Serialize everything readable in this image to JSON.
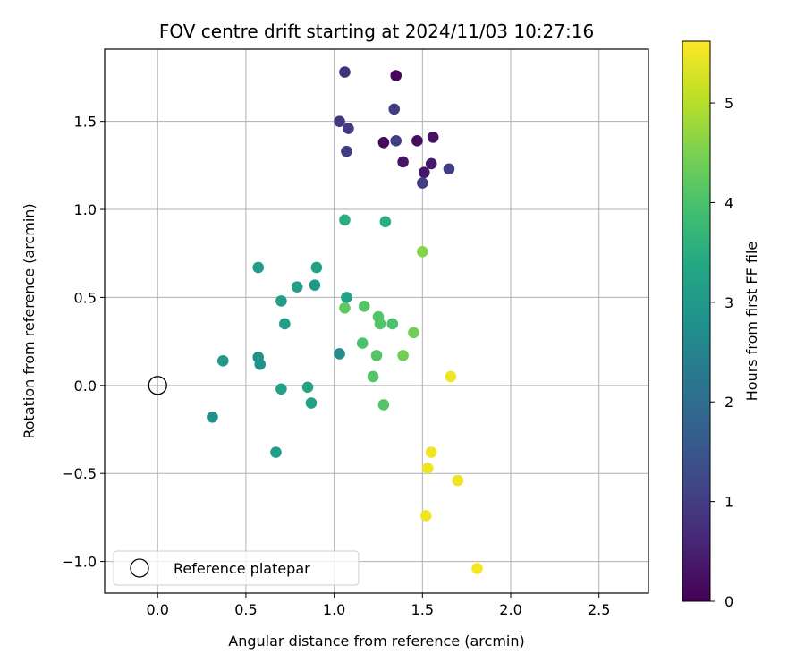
{
  "chart_data": {
    "type": "scatter",
    "title": "FOV centre drift starting at 2024/11/03 10:27:16",
    "xlabel": "Angular distance from reference (arcmin)",
    "ylabel": "Rotation from reference (arcmin)",
    "colorbar_label": "Hours from first FF file",
    "colormap": "viridis",
    "xlim": [
      -0.3,
      2.78
    ],
    "ylim": [
      -1.18,
      1.91
    ],
    "clim": [
      0,
      5.62
    ],
    "xticks": [
      0.0,
      0.5,
      1.0,
      1.5,
      2.0,
      2.5
    ],
    "xtick_labels": [
      "0.0",
      "0.5",
      "1.0",
      "1.5",
      "2.0",
      "2.5"
    ],
    "yticks": [
      -1.0,
      -0.5,
      0.0,
      0.5,
      1.0,
      1.5
    ],
    "ytick_labels": [
      "−1.0",
      "−0.5",
      "0.0",
      "0.5",
      "1.0",
      "1.5"
    ],
    "cticks": [
      0,
      1,
      2,
      3,
      4,
      5
    ],
    "ctick_labels": [
      "0",
      "1",
      "2",
      "3",
      "4",
      "5"
    ],
    "grid": true,
    "reference": {
      "x": 0.0,
      "y": 0.0,
      "label": "Reference platepar"
    },
    "legend_position": "lower-left",
    "points": [
      {
        "x": 1.35,
        "y": 1.76,
        "h": 0.1
      },
      {
        "x": 1.28,
        "y": 1.38,
        "h": 0.15
      },
      {
        "x": 1.47,
        "y": 1.39,
        "h": 0.2
      },
      {
        "x": 1.56,
        "y": 1.41,
        "h": 0.25
      },
      {
        "x": 1.39,
        "y": 1.27,
        "h": 0.3
      },
      {
        "x": 1.51,
        "y": 1.21,
        "h": 0.35
      },
      {
        "x": 1.55,
        "y": 1.26,
        "h": 0.4
      },
      {
        "x": 1.06,
        "y": 1.78,
        "h": 0.8
      },
      {
        "x": 1.03,
        "y": 1.5,
        "h": 0.9
      },
      {
        "x": 1.08,
        "y": 1.46,
        "h": 0.95
      },
      {
        "x": 1.34,
        "y": 1.57,
        "h": 1.0
      },
      {
        "x": 1.35,
        "y": 1.39,
        "h": 1.05
      },
      {
        "x": 1.07,
        "y": 1.33,
        "h": 1.0
      },
      {
        "x": 1.5,
        "y": 1.15,
        "h": 1.0
      },
      {
        "x": 1.65,
        "y": 1.23,
        "h": 1.0
      },
      {
        "x": 0.57,
        "y": 0.67,
        "h": 3.1
      },
      {
        "x": 0.9,
        "y": 0.67,
        "h": 3.2
      },
      {
        "x": 0.79,
        "y": 0.56,
        "h": 3.1
      },
      {
        "x": 0.89,
        "y": 0.57,
        "h": 3.0
      },
      {
        "x": 0.7,
        "y": 0.48,
        "h": 3.1
      },
      {
        "x": 0.72,
        "y": 0.35,
        "h": 3.1
      },
      {
        "x": 1.07,
        "y": 0.5,
        "h": 3.2
      },
      {
        "x": 1.06,
        "y": 0.94,
        "h": 3.5
      },
      {
        "x": 1.29,
        "y": 0.93,
        "h": 3.5
      },
      {
        "x": 0.37,
        "y": 0.14,
        "h": 3.0
      },
      {
        "x": 0.57,
        "y": 0.16,
        "h": 2.8
      },
      {
        "x": 0.58,
        "y": 0.12,
        "h": 2.8
      },
      {
        "x": 1.03,
        "y": 0.18,
        "h": 2.7
      },
      {
        "x": 0.7,
        "y": -0.02,
        "h": 3.2
      },
      {
        "x": 0.85,
        "y": -0.01,
        "h": 3.3
      },
      {
        "x": 0.87,
        "y": -0.1,
        "h": 3.2
      },
      {
        "x": 0.31,
        "y": -0.18,
        "h": 2.8
      },
      {
        "x": 0.67,
        "y": -0.38,
        "h": 3.1
      },
      {
        "x": 1.06,
        "y": 0.44,
        "h": 4.2
      },
      {
        "x": 1.17,
        "y": 0.45,
        "h": 4.1
      },
      {
        "x": 1.25,
        "y": 0.39,
        "h": 4.1
      },
      {
        "x": 1.26,
        "y": 0.35,
        "h": 4.1
      },
      {
        "x": 1.33,
        "y": 0.35,
        "h": 4.0
      },
      {
        "x": 1.16,
        "y": 0.24,
        "h": 4.0
      },
      {
        "x": 1.24,
        "y": 0.17,
        "h": 4.1
      },
      {
        "x": 1.22,
        "y": 0.05,
        "h": 4.1
      },
      {
        "x": 1.28,
        "y": -0.11,
        "h": 4.1
      },
      {
        "x": 1.45,
        "y": 0.3,
        "h": 4.4
      },
      {
        "x": 1.39,
        "y": 0.17,
        "h": 4.4
      },
      {
        "x": 1.5,
        "y": 0.76,
        "h": 4.6
      },
      {
        "x": 1.66,
        "y": 0.05,
        "h": 5.5
      },
      {
        "x": 1.55,
        "y": -0.38,
        "h": 5.5
      },
      {
        "x": 1.53,
        "y": -0.47,
        "h": 5.5
      },
      {
        "x": 1.7,
        "y": -0.54,
        "h": 5.5
      },
      {
        "x": 1.52,
        "y": -0.74,
        "h": 5.5
      },
      {
        "x": 1.81,
        "y": -1.04,
        "h": 5.55
      }
    ]
  }
}
